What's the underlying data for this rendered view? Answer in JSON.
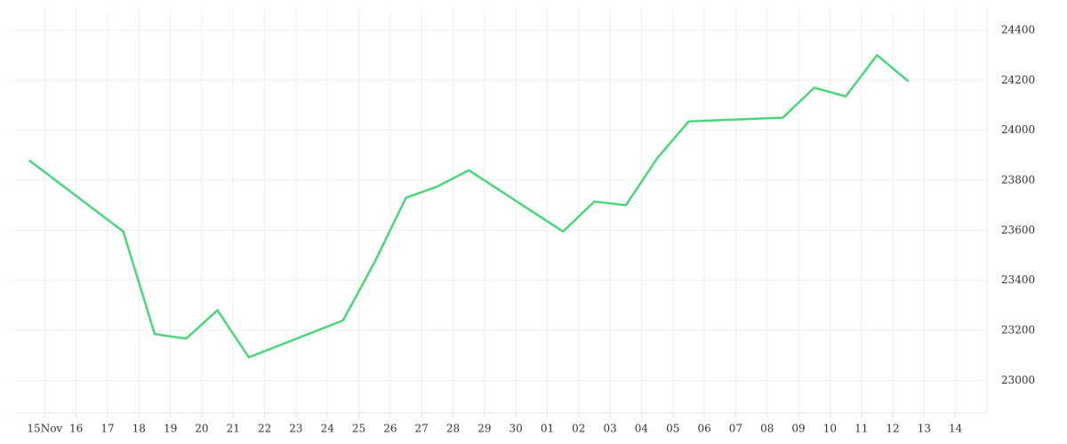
{
  "chart_data": {
    "type": "line",
    "x": [
      -0.5,
      2.5,
      3.5,
      4.5,
      5.5,
      6.5,
      9.5,
      10.5,
      11.5,
      12.5,
      13.5,
      16.5,
      17.5,
      18.5,
      19.5,
      20.5,
      23.5,
      24.5,
      25.5,
      26.5,
      27.5
    ],
    "series": [
      {
        "color": "#4cd67c",
        "values": [
          23880,
          23595,
          23185,
          23167,
          23280,
          23092,
          23240,
          23472,
          23730,
          23775,
          23840,
          23595,
          23715,
          23700,
          23888,
          24035,
          24050,
          24170,
          24135,
          24300,
          24195
        ]
      }
    ],
    "xlim": [
      -1,
      30
    ],
    "xticks": [
      {
        "value": 0,
        "label": "15Nov"
      },
      {
        "value": 1,
        "label": "16"
      },
      {
        "value": 2,
        "label": "17"
      },
      {
        "value": 3,
        "label": "18"
      },
      {
        "value": 4,
        "label": "19"
      },
      {
        "value": 5,
        "label": "20"
      },
      {
        "value": 6,
        "label": "21"
      },
      {
        "value": 7,
        "label": "22"
      },
      {
        "value": 8,
        "label": "23"
      },
      {
        "value": 9,
        "label": "24"
      },
      {
        "value": 10,
        "label": "25"
      },
      {
        "value": 11,
        "label": "26"
      },
      {
        "value": 12,
        "label": "27"
      },
      {
        "value": 13,
        "label": "28"
      },
      {
        "value": 14,
        "label": "29"
      },
      {
        "value": 15,
        "label": "30"
      },
      {
        "value": 16,
        "label": "01"
      },
      {
        "value": 17,
        "label": "02"
      },
      {
        "value": 18,
        "label": "03"
      },
      {
        "value": 19,
        "label": "04"
      },
      {
        "value": 20,
        "label": "05"
      },
      {
        "value": 21,
        "label": "06"
      },
      {
        "value": 22,
        "label": "07"
      },
      {
        "value": 23,
        "label": "08"
      },
      {
        "value": 24,
        "label": "09"
      },
      {
        "value": 25,
        "label": "10"
      },
      {
        "value": 26,
        "label": "11"
      },
      {
        "value": 27,
        "label": "12"
      },
      {
        "value": 28,
        "label": "13"
      },
      {
        "value": 29,
        "label": "14"
      }
    ],
    "ylim": [
      22870,
      24485
    ],
    "yticks": [
      23000,
      23200,
      23400,
      23600,
      23800,
      24000,
      24200,
      24400
    ],
    "grid": true
  }
}
